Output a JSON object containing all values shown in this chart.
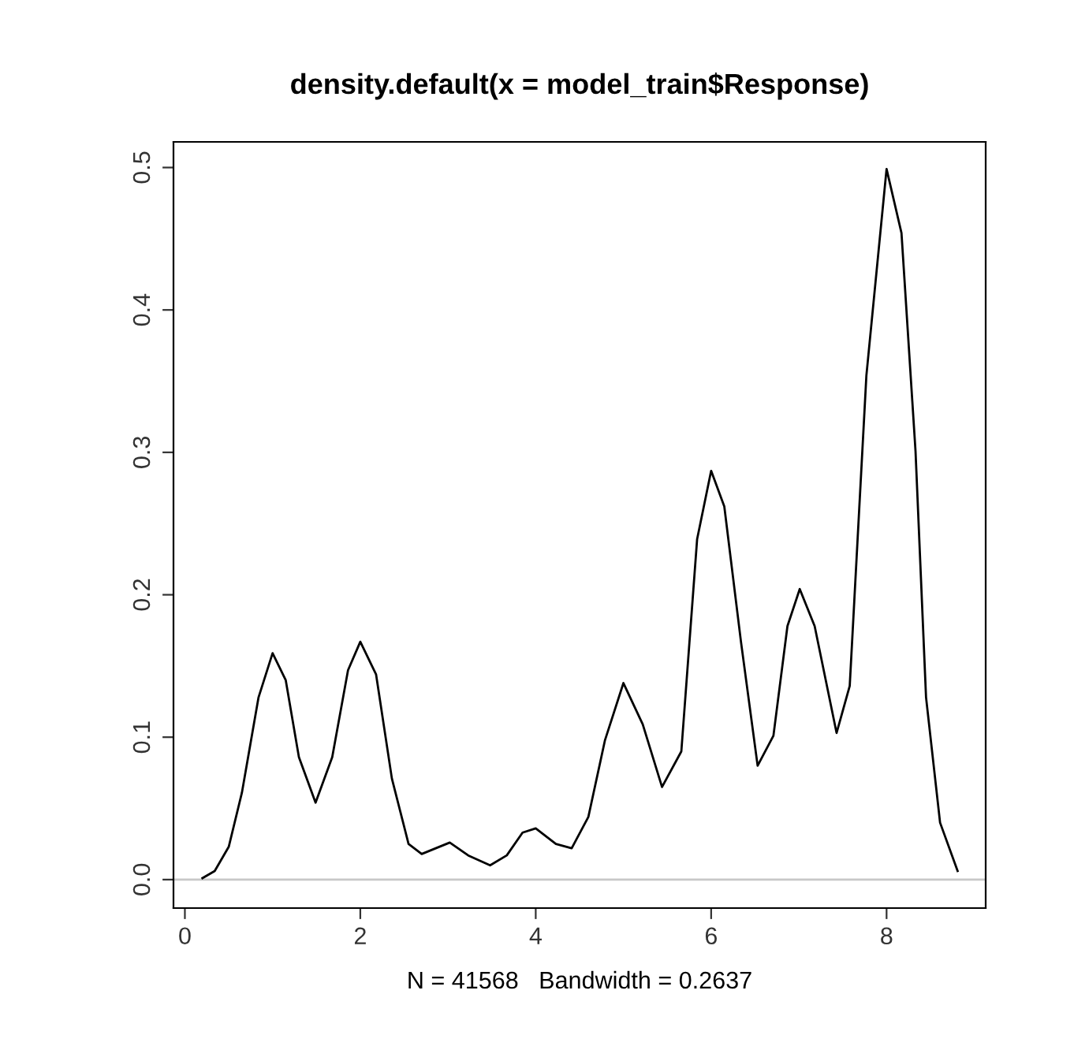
{
  "chart_data": {
    "type": "line",
    "title": "density.default(x = model_train$Response)",
    "xlabel": "N = 41568   Bandwidth = 0.2637",
    "x": [
      0.2,
      0.34,
      0.5,
      0.65,
      0.84,
      1.0,
      1.15,
      1.3,
      1.49,
      1.68,
      1.86,
      2.0,
      2.18,
      2.36,
      2.55,
      2.7,
      3.02,
      3.23,
      3.48,
      3.67,
      3.85,
      4.0,
      4.23,
      4.41,
      4.6,
      4.79,
      5.0,
      5.22,
      5.44,
      5.66,
      5.84,
      6.0,
      6.15,
      6.34,
      6.53,
      6.71,
      6.87,
      7.01,
      7.18,
      7.43,
      7.58,
      7.77,
      8.0,
      8.17,
      8.33,
      8.45,
      8.61,
      8.81
    ],
    "series": [
      {
        "color": "#000000",
        "values": [
          0.001,
          0.006,
          0.023,
          0.061,
          0.128,
          0.159,
          0.14,
          0.086,
          0.054,
          0.086,
          0.147,
          0.167,
          0.144,
          0.071,
          0.025,
          0.018,
          0.026,
          0.017,
          0.01,
          0.017,
          0.033,
          0.036,
          0.025,
          0.022,
          0.044,
          0.098,
          0.138,
          0.109,
          0.065,
          0.09,
          0.239,
          0.287,
          0.262,
          0.167,
          0.08,
          0.101,
          0.178,
          0.204,
          0.178,
          0.103,
          0.136,
          0.354,
          0.499,
          0.454,
          0.301,
          0.128,
          0.04,
          0.006
        ]
      }
    ],
    "xlim": [
      -0.13,
      9.13
    ],
    "ylim": [
      -0.02,
      0.518
    ],
    "xticks": [
      0,
      2,
      4,
      6,
      8
    ],
    "yticks": [
      {
        "value": 0,
        "label": "0.0"
      },
      0.1,
      0.2,
      0.3,
      0.4,
      0.5
    ],
    "ref_lines": [
      {
        "axis": "y",
        "value": 0,
        "color": "#c8c8c8"
      }
    ],
    "grid": false,
    "legend": false,
    "line_style": "solid",
    "marker": "none"
  }
}
